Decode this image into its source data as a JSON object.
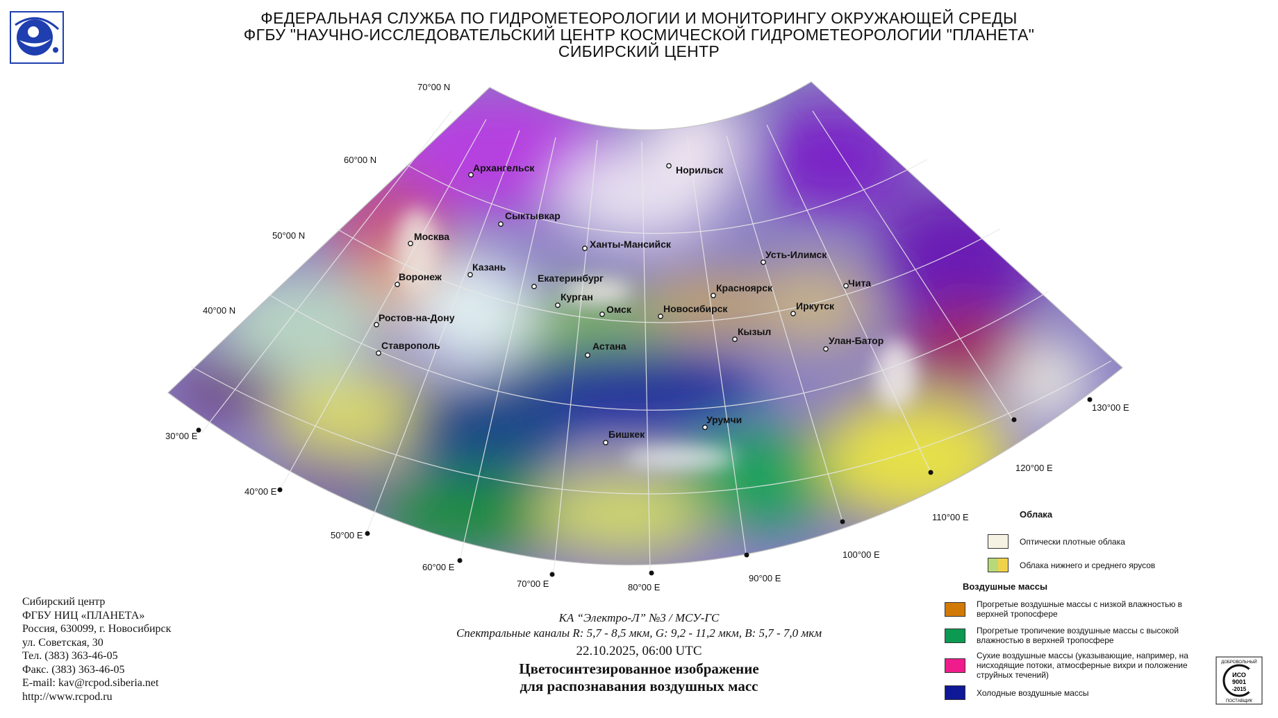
{
  "header": {
    "line1": "ФЕДЕРАЛЬНАЯ СЛУЖБА ПО ГИДРОМЕТЕОРОЛОГИИ И МОНИТОРИНГУ ОКРУЖАЮЩЕЙ СРЕДЫ",
    "line2": "ФГБУ \"НАУЧНО-ИССЛЕДОВАТЕЛЬСКИЙ ЦЕНТР КОСМИЧЕСКОЙ ГИДРОМЕТЕОРОЛОГИИ \"ПЛАНЕТА\"",
    "line3": "СИБИРСКИЙ ЦЕНТР"
  },
  "logo": {
    "icon": "roshydromet-globe-logo",
    "color": "#1f3fb0"
  },
  "map": {
    "lat_labels": [
      "70°00 N",
      "60°00 N",
      "50°00 N",
      "40°00 N"
    ],
    "lon_labels": [
      "30°00 E",
      "40°00 E",
      "50°00 E",
      "60°00 E",
      "70°00 E",
      "80°00 E",
      "90°00 E",
      "100°00 E",
      "110°00 E",
      "120°00 E",
      "130°00 E"
    ],
    "cities": [
      "Архангельск",
      "Норильск",
      "Сыктывкар",
      "Ханты-Мансийск",
      "Москва",
      "Казань",
      "Воронеж",
      "Екатеринбург",
      "Усть-Илимск",
      "Чита",
      "Красноярск",
      "Курган",
      "Омск",
      "Новосибирск",
      "Иркутск",
      "Ростов-на-Дону",
      "Кызыл",
      "Улан-Батор",
      "Ставрополь",
      "Астана",
      "Урумчи",
      "Бишкек"
    ]
  },
  "contact": {
    "lines": [
      "Сибирский центр",
      "ФГБУ НИЦ «ПЛАНЕТА»",
      "Россия, 630099, г. Новосибирск",
      "ул. Советская, 30",
      "Тел. (383) 363-46-05",
      "Факс. (383) 363-46-05",
      "E-mail: kav@rcpod.siberia.net",
      "http://www.rcpod.ru"
    ]
  },
  "caption": {
    "satellite": "КА “Электро-Л” №3 / МСУ-ГС",
    "channels": "Спектральные каналы R: 5,7 - 8,5 мкм, G: 9,2 - 11,2 мкм, B: 5,7 - 7,0 мкм",
    "datetime": "22.10.2025, 06:00 UTC",
    "title1": "Цветосинтезированное изображение",
    "title2": "для распознавания воздушных масс"
  },
  "legend": {
    "clouds_heading": "Облака",
    "clouds": [
      {
        "label": "Оптически плотные облака",
        "color": "#f5f2e4"
      },
      {
        "label": "Облака нижнего и среднего ярусов",
        "colors": [
          "#b7d97a",
          "#f0d24a"
        ]
      }
    ],
    "air_heading": "Воздушные массы",
    "air_masses": [
      {
        "label": "Прогретые воздушные массы с низкой влажностью в верхней тропосфере",
        "color": "#d17a06"
      },
      {
        "label": "Прогретые тропичекие воздушные массы с высокой влажностью в верхней тропосфере",
        "color": "#0c9a52"
      },
      {
        "label": "Сухие воздушные массы (указывающие, например, на нисходящие потоки, атмосферные вихри и положение струйных течений)",
        "color": "#f01c8c"
      },
      {
        "label": "Холодные воздушные массы",
        "color": "#0f1896"
      }
    ]
  },
  "iso_badge": {
    "top": "ДОБРОВОЛЬНЫЙ",
    "line1": "ИСО",
    "line2": "9001",
    "line3": "-2015",
    "bottom": "ПОСТАВЩИК"
  }
}
